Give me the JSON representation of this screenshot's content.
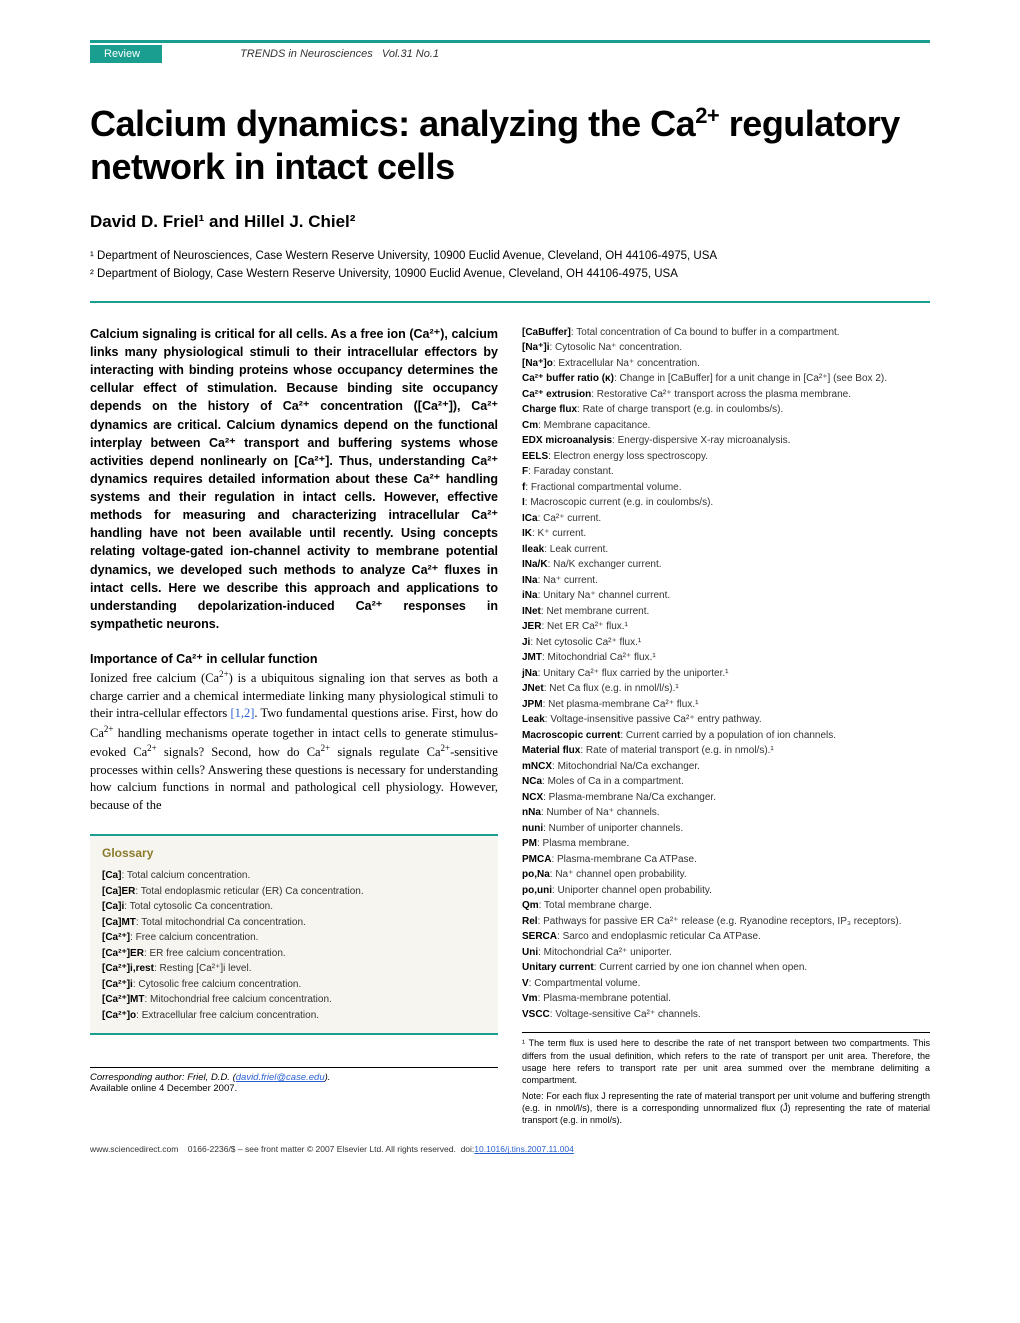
{
  "header": {
    "review_label": "Review",
    "journal": "TRENDS in Neurosciences",
    "volume": "Vol.31 No.1"
  },
  "title": {
    "pre": "Calcium dynamics: analyzing the Ca",
    "sup": "2+",
    "post": " regulatory network in intact cells"
  },
  "authors_html": "David D. Friel¹ and Hillel J. Chiel²",
  "affiliations": [
    "¹ Department of Neurosciences, Case Western Reserve University, 10900 Euclid Avenue, Cleveland, OH 44106-4975, USA",
    "² Department of Biology, Case Western Reserve University, 10900 Euclid Avenue, Cleveland, OH 44106-4975, USA"
  ],
  "abstract": "Calcium signaling is critical for all cells. As a free ion (Ca²⁺), calcium links many physiological stimuli to their intracellular effectors by interacting with binding proteins whose occupancy determines the cellular effect of stimulation. Because binding site occupancy depends on the history of Ca²⁺ concentration ([Ca²⁺]), Ca²⁺ dynamics are critical. Calcium dynamics depend on the functional interplay between Ca²⁺ transport and buffering systems whose activities depend nonlinearly on [Ca²⁺]. Thus, understanding Ca²⁺ dynamics requires detailed information about these Ca²⁺ handling systems and their regulation in intact cells. However, effective methods for measuring and characterizing intracellular Ca²⁺ handling have not been available until recently. Using concepts relating voltage-gated ion-channel activity to membrane potential dynamics, we developed such methods to analyze Ca²⁺ fluxes in intact cells. Here we describe this approach and applications to understanding depolarization-induced Ca²⁺ responses in sympathetic neurons.",
  "section1_head": "Importance of Ca²⁺ in cellular function",
  "section1_body": "Ionized free calcium (Ca²⁺) is a ubiquitous signaling ion that serves as both a charge carrier and a chemical intermediate linking many physiological stimuli to their intra-cellular effectors [1,2]. Two fundamental questions arise. First, how do Ca²⁺ handling mechanisms operate together in intact cells to generate stimulus-evoked Ca²⁺ signals? Second, how do Ca²⁺ signals regulate Ca²⁺-sensitive processes within cells? Answering these questions is necessary for understanding how calcium functions in normal and pathological cell physiology. However, because of the",
  "glossary_left": [
    {
      "term": "[Ca]",
      "def": ": Total calcium concentration."
    },
    {
      "term": "[Ca]ER",
      "def": ": Total endoplasmic reticular (ER) Ca concentration."
    },
    {
      "term": "[Ca]i",
      "def": ": Total cytosolic Ca concentration."
    },
    {
      "term": "[Ca]MT",
      "def": ": Total mitochondrial Ca concentration."
    },
    {
      "term": "[Ca²⁺]",
      "def": ": Free calcium concentration."
    },
    {
      "term": "[Ca²⁺]ER",
      "def": ": ER free calcium concentration."
    },
    {
      "term": "[Ca²⁺]i,rest",
      "def": ": Resting [Ca²⁺]i level."
    },
    {
      "term": "[Ca²⁺]i",
      "def": ": Cytosolic free calcium concentration."
    },
    {
      "term": "[Ca²⁺]MT",
      "def": ": Mitochondrial free calcium concentration."
    },
    {
      "term": "[Ca²⁺]o",
      "def": ": Extracellular free calcium concentration."
    }
  ],
  "glossary_right": [
    {
      "term": "[CaBuffer]",
      "def": ": Total concentration of Ca bound to buffer in a compartment."
    },
    {
      "term": "[Na⁺]i",
      "def": ": Cytosolic Na⁺ concentration."
    },
    {
      "term": "[Na⁺]o",
      "def": ": Extracellular Na⁺ concentration."
    },
    {
      "term": "Ca²⁺ buffer ratio (κ)",
      "def": ": Change in [CaBuffer] for a unit change in [Ca²⁺] (see Box 2)."
    },
    {
      "term": "Ca²⁺ extrusion",
      "def": ": Restorative Ca²⁺ transport across the plasma membrane."
    },
    {
      "term": "Charge flux",
      "def": ": Rate of charge transport (e.g. in coulombs/s)."
    },
    {
      "term": "Cm",
      "def": ": Membrane capacitance."
    },
    {
      "term": "EDX microanalysis",
      "def": ": Energy-dispersive X-ray microanalysis."
    },
    {
      "term": "EELS",
      "def": ": Electron energy loss spectroscopy."
    },
    {
      "term": "F",
      "def": ": Faraday constant."
    },
    {
      "term": "f",
      "def": ": Fractional compartmental volume."
    },
    {
      "term": "I",
      "def": ": Macroscopic current (e.g. in coulombs/s)."
    },
    {
      "term": "ICa",
      "def": ": Ca²⁺ current."
    },
    {
      "term": "IK",
      "def": ": K⁺ current."
    },
    {
      "term": "Ileak",
      "def": ": Leak current."
    },
    {
      "term": "INa/K",
      "def": ": Na/K exchanger current."
    },
    {
      "term": "INa",
      "def": ": Na⁺ current."
    },
    {
      "term": "iNa",
      "def": ": Unitary Na⁺ channel current."
    },
    {
      "term": "INet",
      "def": ": Net membrane current."
    },
    {
      "term": "JER",
      "def": ": Net ER Ca²⁺ flux.¹"
    },
    {
      "term": "Ji",
      "def": ": Net cytosolic Ca²⁺ flux.¹"
    },
    {
      "term": "JMT",
      "def": ": Mitochondrial Ca²⁺ flux.¹"
    },
    {
      "term": "jNa",
      "def": ": Unitary Ca²⁺ flux carried by the uniporter.¹"
    },
    {
      "term": "JNet",
      "def": ": Net Ca flux (e.g. in nmol/l/s).¹"
    },
    {
      "term": "JPM",
      "def": ": Net plasma-membrane Ca²⁺ flux.¹"
    },
    {
      "term": "Leak",
      "def": ": Voltage-insensitive passive Ca²⁺ entry pathway."
    },
    {
      "term": "Macroscopic current",
      "def": ": Current carried by a population of ion channels."
    },
    {
      "term": "Material flux",
      "def": ": Rate of material transport (e.g. in nmol/s).¹"
    },
    {
      "term": "mNCX",
      "def": ": Mitochondrial Na/Ca exchanger."
    },
    {
      "term": "NCa",
      "def": ": Moles of Ca in a compartment."
    },
    {
      "term": "NCX",
      "def": ": Plasma-membrane Na/Ca exchanger."
    },
    {
      "term": "nNa",
      "def": ": Number of Na⁺ channels."
    },
    {
      "term": "nuni",
      "def": ": Number of uniporter channels."
    },
    {
      "term": "PM",
      "def": ": Plasma membrane."
    },
    {
      "term": "PMCA",
      "def": ": Plasma-membrane Ca ATPase."
    },
    {
      "term": "po,Na",
      "def": ": Na⁺ channel open probability."
    },
    {
      "term": "po,uni",
      "def": ": Uniporter channel open probability."
    },
    {
      "term": "Qm",
      "def": ": Total membrane charge."
    },
    {
      "term": "Rel",
      "def": ": Pathways for passive ER Ca²⁺ release (e.g. Ryanodine receptors, IP₃ receptors)."
    },
    {
      "term": "SERCA",
      "def": ": Sarco and endoplasmic reticular Ca ATPase."
    },
    {
      "term": "Uni",
      "def": ": Mitochondrial Ca²⁺ uniporter."
    },
    {
      "term": "Unitary current",
      "def": ": Current carried by one ion channel when open."
    },
    {
      "term": "V",
      "def": ": Compartmental volume."
    },
    {
      "term": "Vm",
      "def": ": Plasma-membrane potential."
    },
    {
      "term": "VSCC",
      "def": ": Voltage-sensitive Ca²⁺ channels."
    }
  ],
  "corresponding": {
    "label": "Corresponding author:",
    "name": "Friel, D.D.",
    "email": "david.friel@case.edu",
    "online": "Available online 4 December 2007."
  },
  "footnote": "¹ The term flux is used here to describe the rate of net transport between two compartments. This differs from the usual definition, which refers to the rate of transport per unit area. Therefore, the usage here refers to transport rate per unit area summed over the membrane delimiting a compartment.",
  "footnote2": "Note: For each flux J representing the rate of material transport per unit volume and buffering strength (e.g. in nmol/l/s), there is a corresponding unnormalized flux (Ĵ) representing the rate of material transport (e.g. in nmol/s).",
  "footer": {
    "site": "www.sciencedirect.com",
    "issn": "0166-2236/$ – see front matter © 2007 Elsevier Ltd. All rights reserved.",
    "doi_label": "doi:",
    "doi": "10.1016/j.tins.2007.11.004"
  },
  "colors": {
    "accent": "#1a9e8f",
    "glossary_title": "#8a7a2a",
    "glossary_bg": "#f7f5f0",
    "link": "#2a5fd0"
  }
}
